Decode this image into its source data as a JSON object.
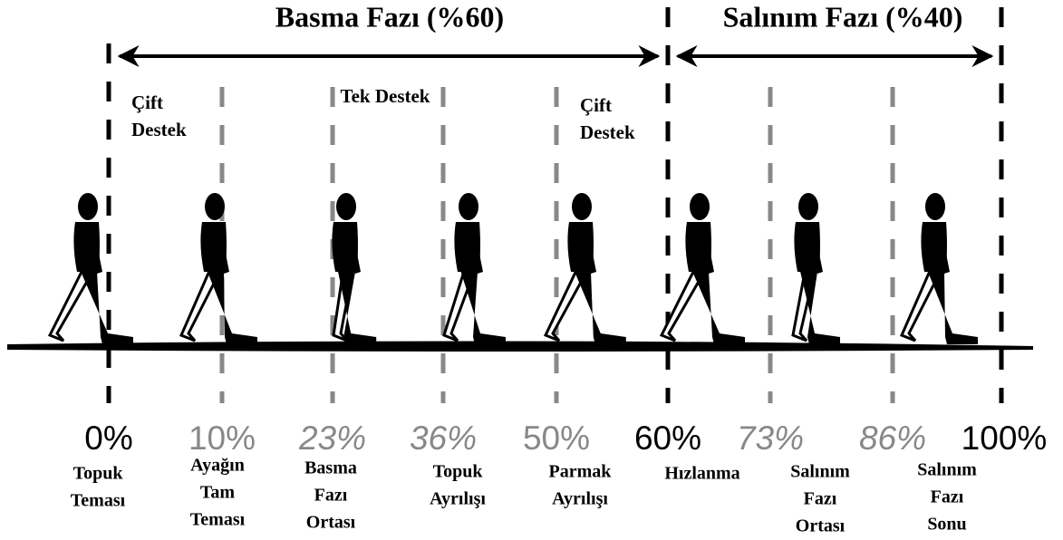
{
  "phases": [
    {
      "label": "Basma Fazı (%60)"
    },
    {
      "label": "Salınım Fazı (%40)"
    }
  ],
  "support": [
    {
      "lines": [
        "Çift",
        "Destek"
      ]
    },
    {
      "lines": [
        "Tek Destek"
      ]
    },
    {
      "lines": [
        "Çift",
        "Destek"
      ]
    }
  ],
  "events": [
    {
      "percent": "0%",
      "lines": [
        "Topuk",
        "Teması"
      ]
    },
    {
      "percent": "10%",
      "lines": [
        "Ayağın",
        "Tam",
        "Teması"
      ]
    },
    {
      "percent": "23%",
      "lines": [
        "Basma",
        "Fazı",
        "Ortası"
      ]
    },
    {
      "percent": "36%",
      "lines": [
        "Topuk",
        "Ayrılışı"
      ]
    },
    {
      "percent": "50%",
      "lines": [
        "Parmak",
        "Ayrılışı"
      ]
    },
    {
      "percent": "60%",
      "lines": [
        "Hızlanma"
      ]
    },
    {
      "percent": "73%",
      "lines": [
        "Salınım",
        "Fazı",
        "Ortası"
      ]
    },
    {
      "percent": "86%",
      "lines": [
        "Salınım",
        "Fazı",
        "Sonu"
      ]
    },
    {
      "percent": "100%",
      "lines": []
    }
  ]
}
